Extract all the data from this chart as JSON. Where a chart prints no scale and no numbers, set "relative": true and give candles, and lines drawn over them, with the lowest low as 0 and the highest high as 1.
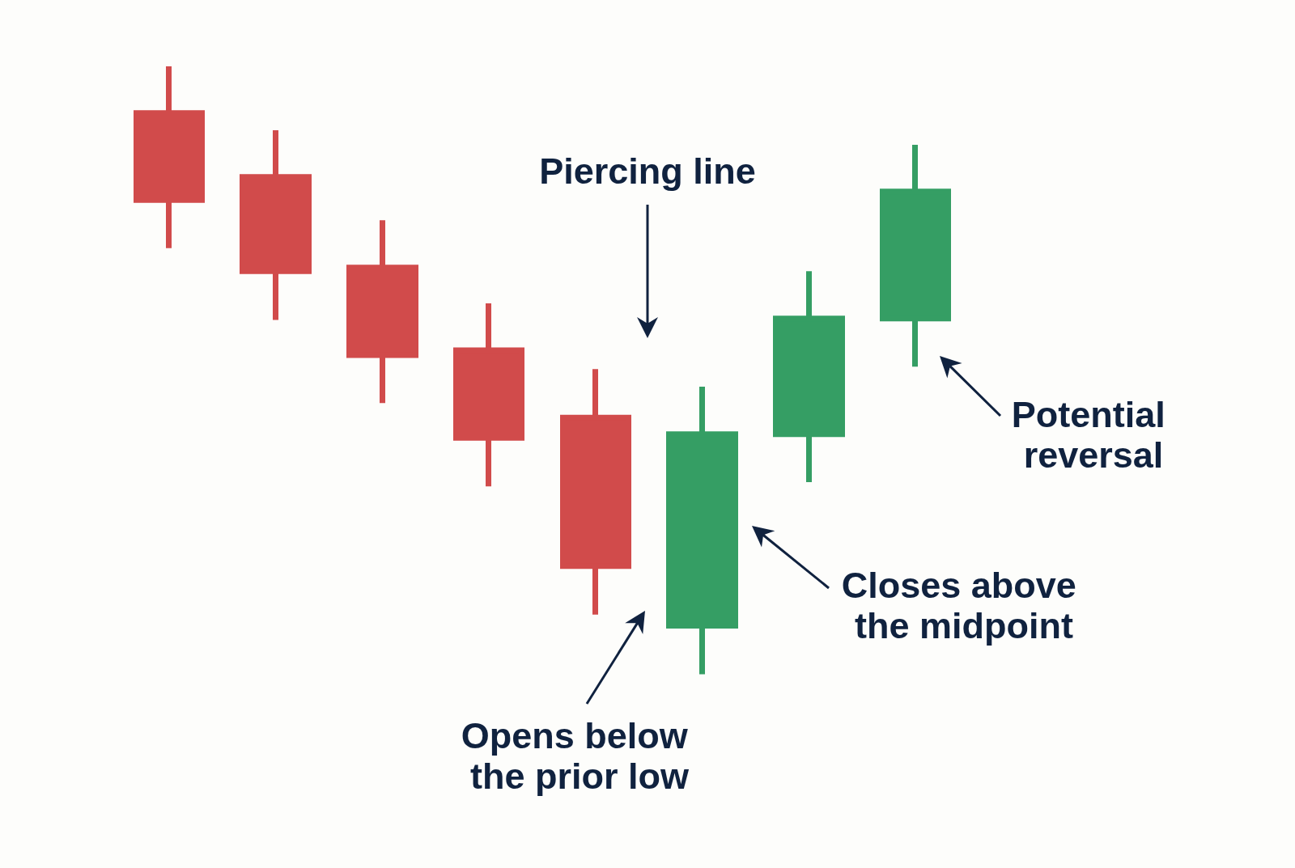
{
  "chart_data": {
    "type": "candlestick",
    "relative": true,
    "categories": [
      null,
      null,
      null,
      null,
      null,
      null,
      null,
      null
    ],
    "ohlc": [
      [
        0.923,
        1.0,
        0.701,
        0.78
      ],
      [
        0.818,
        0.895,
        0.583,
        0.663
      ],
      [
        0.669,
        0.747,
        0.446,
        0.525
      ],
      [
        0.533,
        0.61,
        0.309,
        0.389
      ],
      [
        0.422,
        0.502,
        0.098,
        0.178
      ],
      [
        0.08,
        0.473,
        0.0,
        0.395
      ],
      [
        0.395,
        0.663,
        0.316,
        0.585
      ],
      [
        0.585,
        0.871,
        0.506,
        0.794
      ]
    ],
    "colors": [
      "#d14b4b",
      "#d14b4b",
      "#d14b4b",
      "#d14b4b",
      "#d14b4b",
      "#359e64",
      "#359e64",
      "#359e64"
    ],
    "annotations": [
      "Piercing line",
      "Opens below the prior low",
      "Closes above the midpoint",
      "Potential reversal"
    ]
  }
}
